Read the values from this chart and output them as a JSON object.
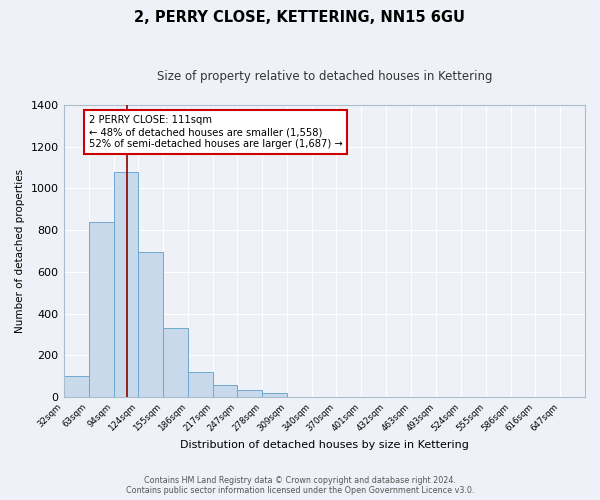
{
  "title": "2, PERRY CLOSE, KETTERING, NN15 6GU",
  "subtitle": "Size of property relative to detached houses in Kettering",
  "xlabel": "Distribution of detached houses by size in Kettering",
  "ylabel": "Number of detached properties",
  "bin_edges": [
    32,
    63,
    94,
    124,
    155,
    186,
    217,
    247,
    278,
    309,
    340,
    370,
    401,
    432,
    463,
    493,
    524,
    555,
    586,
    616,
    647
  ],
  "all_bin_values": [
    100,
    840,
    1080,
    695,
    330,
    120,
    60,
    33,
    20,
    0,
    0,
    0,
    0,
    0,
    0,
    0,
    0,
    0,
    0,
    0
  ],
  "bar_color": "#c9d9ec",
  "bar_edge_color": "#6fa8d0",
  "vline_x": 111,
  "vline_color": "#8b0000",
  "annotation_title": "2 PERRY CLOSE: 111sqm",
  "annotation_line1": "← 48% of detached houses are smaller (1,558)",
  "annotation_line2": "52% of semi-detached houses are larger (1,687) →",
  "annotation_box_color": "#ffffff",
  "annotation_box_edge": "#cc0000",
  "ylim": [
    0,
    1400
  ],
  "yticks": [
    0,
    200,
    400,
    600,
    800,
    1000,
    1200,
    1400
  ],
  "background_color": "#eef2f8",
  "grid_color": "#ffffff",
  "footer_line1": "Contains HM Land Registry data © Crown copyright and database right 2024.",
  "footer_line2": "Contains public sector information licensed under the Open Government Licence v3.0."
}
